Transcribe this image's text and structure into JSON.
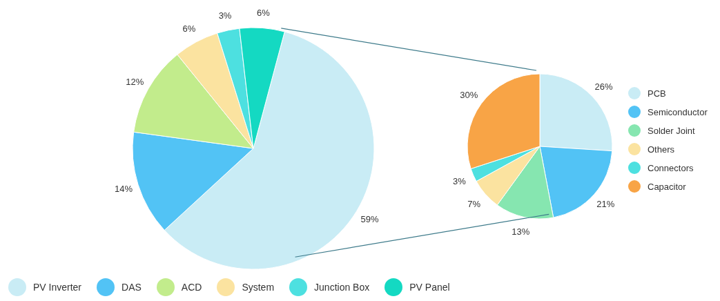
{
  "chart_data": [
    {
      "type": "pie",
      "categories": [
        "PV Inverter",
        "DAS",
        "ACD",
        "System",
        "Junction Box",
        "PV Panel"
      ],
      "values": [
        59,
        14,
        12,
        6,
        3,
        6
      ],
      "value_labels": [
        "59%",
        "14%",
        "12%",
        "6%",
        "3%",
        "6%"
      ],
      "colors": [
        "#c9ecf5",
        "#52c3f5",
        "#c2ec8c",
        "#fbe3a0",
        "#4de0e0",
        "#14d9c2"
      ],
      "legend": "bottom"
    },
    {
      "type": "pie",
      "categories": [
        "PCB",
        "Semiconductor",
        "Solder Joint",
        "Others",
        "Connectors",
        "Capacitor"
      ],
      "values": [
        26,
        21,
        13,
        7,
        3,
        30
      ],
      "value_labels": [
        "26%",
        "21%",
        "13%",
        "7%",
        "3%",
        "30%"
      ],
      "colors": [
        "#c9ecf5",
        "#52c3f5",
        "#86e6b0",
        "#fbe3a0",
        "#4de0e0",
        "#f8a446"
      ],
      "legend": "right"
    }
  ]
}
